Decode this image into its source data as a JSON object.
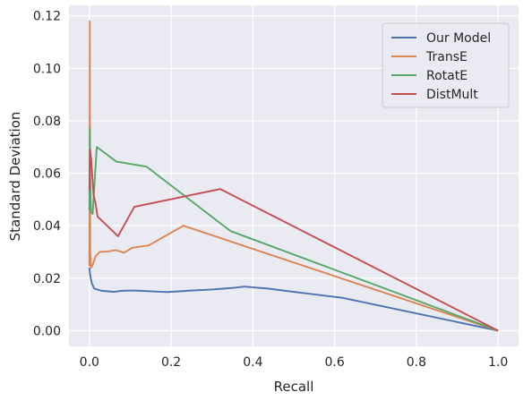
{
  "chart_data": {
    "type": "line",
    "title": "",
    "xlabel": "Recall",
    "ylabel": "Standard Deviation",
    "xlim": [
      -0.05,
      1.05
    ],
    "ylim": [
      -0.006,
      0.124
    ],
    "xticks": [
      0.0,
      0.2,
      0.4,
      0.6,
      0.8,
      1.0
    ],
    "yticks": [
      0.0,
      0.02,
      0.04,
      0.06,
      0.08,
      0.1,
      0.12
    ],
    "xtick_labels": [
      "0.0",
      "0.2",
      "0.4",
      "0.6",
      "0.8",
      "1.0"
    ],
    "ytick_labels": [
      "0.00",
      "0.02",
      "0.04",
      "0.06",
      "0.08",
      "0.10",
      "0.12"
    ],
    "grid": true,
    "legend_position": "top-right",
    "background_color": "#eaeaf2",
    "series": [
      {
        "name": "Our Model",
        "color": "#4c72b0",
        "x": [
          0.0,
          0.002,
          0.006,
          0.012,
          0.03,
          0.06,
          0.08,
          0.11,
          0.15,
          0.19,
          0.21,
          0.25,
          0.3,
          0.35,
          0.38,
          0.44,
          0.5,
          0.62,
          1.0
        ],
        "y": [
          0.024,
          0.021,
          0.018,
          0.016,
          0.0152,
          0.0148,
          0.0152,
          0.0153,
          0.015,
          0.0147,
          0.0149,
          0.0153,
          0.0157,
          0.0163,
          0.0168,
          0.016,
          0.0148,
          0.0125,
          0.0
        ]
      },
      {
        "name": "TransE",
        "color": "#dd8452",
        "x": [
          0.0,
          0.001,
          0.002,
          0.004,
          0.008,
          0.015,
          0.025,
          0.045,
          0.065,
          0.085,
          0.105,
          0.145,
          0.23,
          1.0
        ],
        "y": [
          0.0245,
          0.118,
          0.03,
          0.024,
          0.025,
          0.0283,
          0.03,
          0.0302,
          0.0307,
          0.0297,
          0.0316,
          0.0325,
          0.04,
          0.0
        ]
      },
      {
        "name": "RotatE",
        "color": "#55a868",
        "x": [
          0.0,
          0.001,
          0.002,
          0.004,
          0.008,
          0.018,
          0.04,
          0.065,
          0.14,
          0.345,
          1.0
        ],
        "y": [
          0.046,
          0.077,
          0.058,
          0.045,
          0.0445,
          0.07,
          0.0675,
          0.0645,
          0.0625,
          0.038,
          0.0
        ]
      },
      {
        "name": "DistMult",
        "color": "#c44e52",
        "x": [
          0.0,
          0.002,
          0.005,
          0.01,
          0.015,
          0.02,
          0.03,
          0.07,
          0.11,
          0.32,
          1.0
        ],
        "y": [
          0.0535,
          0.069,
          0.064,
          0.052,
          0.0485,
          0.0435,
          0.042,
          0.036,
          0.0472,
          0.054,
          0.0
        ]
      }
    ]
  }
}
